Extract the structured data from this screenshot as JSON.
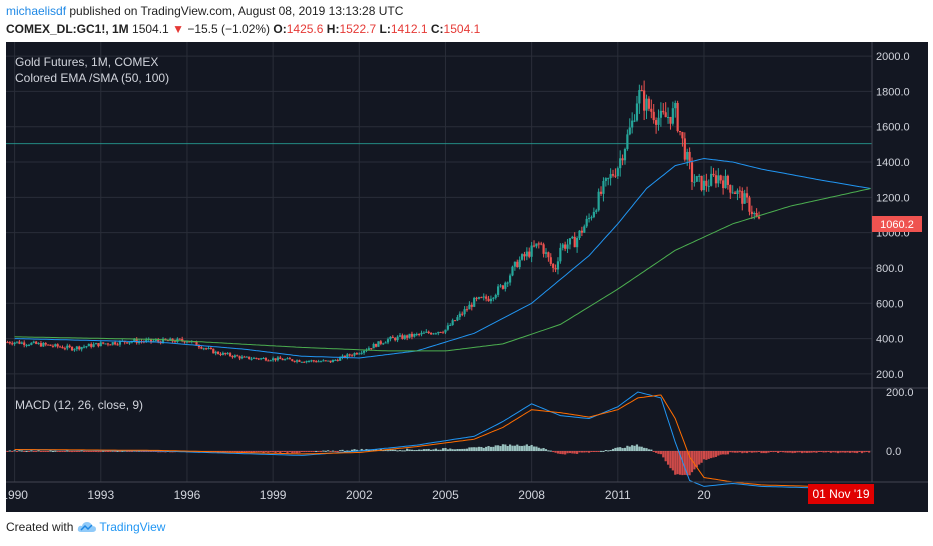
{
  "header": {
    "user": "michaelisdf",
    "published": " published on TradingView.com, August 08, 2019 13:13:28 UTC",
    "symbol": "COMEX_DL:GC1!, 1M",
    "last": "1504.1",
    "change": "−15.5 (−1.02%)",
    "o_label": "O:",
    "o_value": "1425.6",
    "h_label": "H:",
    "h_value": "1522.7",
    "l_label": "L:",
    "l_value": "1412.1",
    "c_label": "C:",
    "c_value": "1504.1"
  },
  "legend": {
    "title": "Gold Futures, 1M, COMEX",
    "indicator": "Colored EMA /SMA (50, 100)",
    "macd": "MACD (12, 26, close, 9)"
  },
  "price_label": "1060.2",
  "date_label": "01 Nov '19",
  "x_ticks": [
    "1990",
    "1993",
    "1996",
    "1999",
    "2002",
    "2005",
    "2008",
    "2011",
    "20"
  ],
  "footer": {
    "created": "Created with",
    "brand": "TradingView"
  },
  "colors": {
    "background": "#131722",
    "grid": "#2a2e39",
    "up": "#26a69a",
    "down": "#ef5350",
    "ema": "#2196f3",
    "sma": "#4caf50",
    "macd_line": "#2196f3",
    "signal_line": "#ff6d00",
    "hist_up": "#b2dfdb",
    "hist_down": "#ef5350",
    "hline": "#26a69a",
    "price_label_bg": "#ef5350",
    "date_label_bg": "#e00000"
  },
  "chart_data": [
    {
      "type": "candlestick",
      "title": "Gold Futures, 1M, COMEX",
      "x_range": [
        1989.7,
        2019.85
      ],
      "y_ticks": [
        200,
        400,
        600,
        800,
        1000,
        1200,
        1400,
        1600,
        1800,
        2000
      ],
      "ylim": [
        120,
        2080
      ],
      "horizontal_line": 1504.1,
      "last_price": 1060.2,
      "series": [
        {
          "name": "Close",
          "x": [
            1990,
            1991,
            1992,
            1993,
            1994,
            1995,
            1996,
            1997,
            1998,
            1999,
            2000,
            2001,
            2002,
            2003,
            2004,
            2005,
            2006,
            2006.5,
            2007,
            2007.5,
            2008,
            2008.3,
            2008.8,
            2009,
            2009.5,
            2010,
            2010.5,
            2011,
            2011.5,
            2011.7,
            2012,
            2012.5,
            2013,
            2013.3,
            2013.6,
            2014,
            2014.5,
            2015,
            2015.5,
            2015.9
          ],
          "values": [
            380,
            365,
            345,
            370,
            385,
            385,
            390,
            320,
            290,
            285,
            275,
            270,
            325,
            395,
            420,
            450,
            610,
            630,
            700,
            830,
            900,
            940,
            780,
            920,
            950,
            1080,
            1250,
            1380,
            1620,
            1790,
            1720,
            1640,
            1680,
            1480,
            1300,
            1270,
            1320,
            1250,
            1170,
            1060
          ]
        },
        {
          "name": "EMA (50)",
          "x": [
            1990,
            1995,
            1998,
            2000,
            2002,
            2004,
            2006,
            2008,
            2010,
            2011,
            2012,
            2013,
            2014,
            2015,
            2016,
            2017,
            2018,
            2019.8
          ],
          "values": [
            400,
            380,
            340,
            300,
            290,
            330,
            430,
            600,
            870,
            1050,
            1250,
            1380,
            1420,
            1400,
            1360,
            1330,
            1300,
            1250
          ]
        },
        {
          "name": "SMA (100)",
          "x": [
            1990,
            1995,
            2000,
            2003,
            2005,
            2007,
            2009,
            2011,
            2013,
            2015,
            2017,
            2019.8
          ],
          "values": [
            410,
            395,
            350,
            330,
            330,
            370,
            480,
            680,
            900,
            1050,
            1150,
            1250
          ]
        }
      ]
    },
    {
      "type": "line",
      "title": "MACD (12, 26, close, 9)",
      "y_ticks": [
        0.0,
        200.0
      ],
      "series": [
        {
          "name": "MACD",
          "x": [
            1990,
            1995,
            2000,
            2002,
            2004,
            2006,
            2007,
            2008,
            2009,
            2010,
            2011,
            2011.7,
            2012.5,
            2013,
            2013.5,
            2014,
            2015,
            2016,
            2019.8
          ],
          "values": [
            5,
            0,
            -15,
            0,
            20,
            50,
            100,
            160,
            120,
            110,
            150,
            200,
            180,
            30,
            -100,
            -120,
            -110,
            -120,
            -130
          ]
        },
        {
          "name": "Signal",
          "x": [
            1990,
            1995,
            2000,
            2002,
            2004,
            2006,
            2007,
            2008,
            2009,
            2010,
            2011,
            2011.7,
            2012.5,
            2013,
            2013.5,
            2014,
            2015,
            2016,
            2019.8
          ],
          "values": [
            5,
            2,
            -10,
            -5,
            15,
            40,
            80,
            140,
            130,
            115,
            140,
            180,
            190,
            110,
            -20,
            -90,
            -105,
            -115,
            -125
          ]
        }
      ]
    }
  ]
}
